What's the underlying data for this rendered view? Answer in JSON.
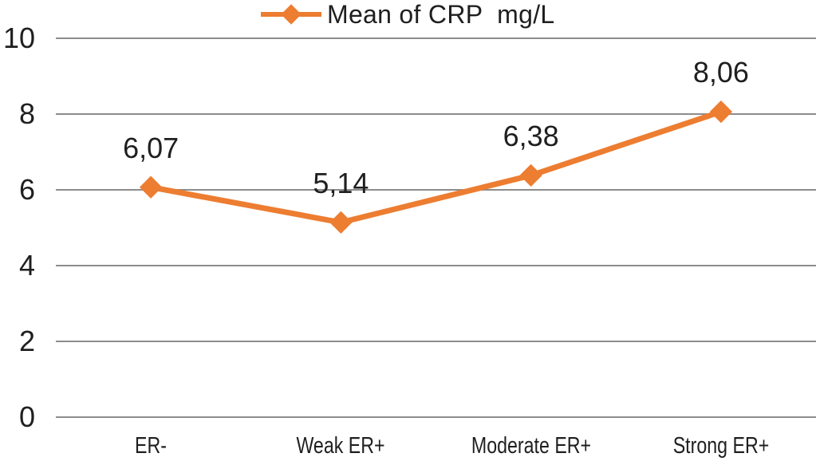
{
  "chart_data": {
    "type": "line",
    "title": "",
    "legend": "Mean of CRP  mg/L",
    "legend_position": "top-center",
    "categories": [
      "ER-",
      "Weak ER+",
      "Moderate ER+",
      "Strong ER+"
    ],
    "series": [
      {
        "name": "Mean of CRP  mg/L",
        "values": [
          6.07,
          5.14,
          6.38,
          8.06
        ],
        "labels": [
          "6,07",
          "5,14",
          "6,38",
          "8,06"
        ]
      }
    ],
    "xlabel": "",
    "ylabel": "",
    "ylim": [
      0,
      10
    ],
    "yticks": [
      0,
      2,
      4,
      6,
      8,
      10
    ],
    "ytick_labels": [
      "0",
      "2",
      "4",
      "6",
      "8",
      "10"
    ],
    "grid": "horizontal",
    "marker": "diamond",
    "colors": {
      "series": "#ED7D31",
      "gridline": "#8C8C8C",
      "text": "#1F1F1F"
    }
  }
}
